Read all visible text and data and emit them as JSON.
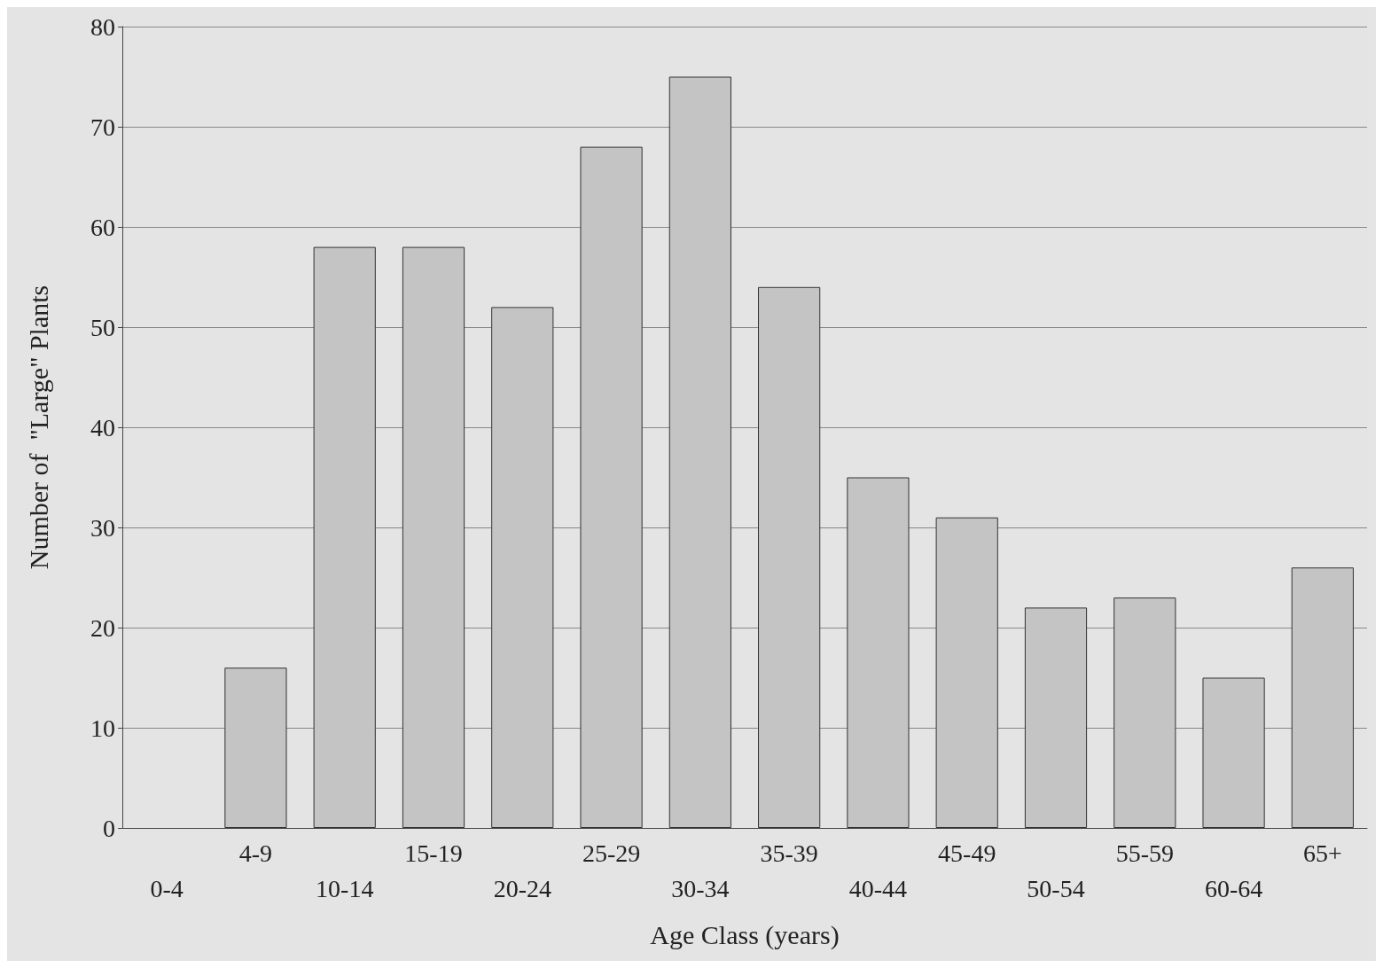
{
  "chart_data": {
    "type": "bar",
    "xlabel": "Age Class (years)",
    "ylabel": "Number of  \"Large\" Plants",
    "categories": [
      "0-4",
      "4-9",
      "10-14",
      "15-19",
      "20-24",
      "25-29",
      "30-34",
      "35-39",
      "40-44",
      "45-49",
      "50-54",
      "55-59",
      "60-64",
      "65+"
    ],
    "values": [
      0,
      16,
      58,
      58,
      52,
      68,
      75,
      54,
      35,
      31,
      22,
      23,
      15,
      26
    ],
    "color": "#c4c4c4",
    "ylim": [
      0,
      80
    ],
    "yticks": [
      0,
      10,
      20,
      30,
      40,
      50,
      60,
      70,
      80
    ],
    "grid": "y"
  }
}
